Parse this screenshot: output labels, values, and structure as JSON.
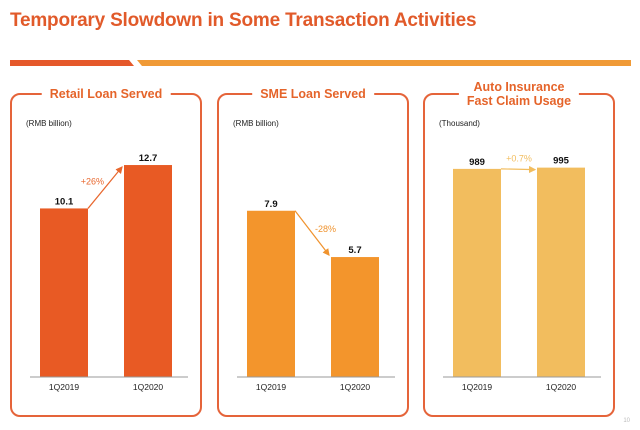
{
  "page": {
    "title": "Temporary Slowdown in Some Transaction Activities",
    "page_number": "10"
  },
  "chart_data": [
    {
      "type": "bar",
      "title": "Retail Loan Served",
      "unit": "(RMB billion)",
      "categories": [
        "1Q2019",
        "1Q2020"
      ],
      "values": [
        10.1,
        12.7
      ],
      "value_labels": [
        "10.1",
        "12.7"
      ],
      "change_label": "+26%",
      "ylim": [
        0,
        14.5
      ],
      "color": "#e85a24",
      "arrow_color": "#e8672e",
      "grid": false
    },
    {
      "type": "bar",
      "title": "SME Loan Served",
      "unit": "(RMB billion)",
      "categories": [
        "1Q2019",
        "1Q2020"
      ],
      "values": [
        7.9,
        5.7
      ],
      "value_labels": [
        "7.9",
        "5.7"
      ],
      "change_label": "-28%",
      "ylim": [
        0,
        11.5
      ],
      "color": "#f3952c",
      "arrow_color": "#f0932e",
      "grid": false
    },
    {
      "type": "bar",
      "title": "Auto Insurance Fast Claim Usage",
      "title_lines": [
        "Auto Insurance",
        "Fast Claim Usage"
      ],
      "unit": "(Thousand)",
      "categories": [
        "1Q2019",
        "1Q2020"
      ],
      "values": [
        989,
        995
      ],
      "value_labels": [
        "989",
        "995"
      ],
      "change_label": "+0.7%",
      "ylim": [
        0,
        1150
      ],
      "color": "#f2bd5e",
      "arrow_color": "#f2bd5e",
      "grid": false
    }
  ]
}
